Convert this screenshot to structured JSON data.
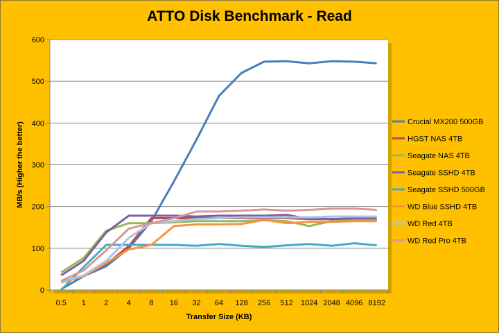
{
  "chart_data": {
    "type": "line",
    "title": "ATTO Disk Benchmark - Read",
    "xlabel": "Transfer Size (KB)",
    "ylabel": "MB/s (Higher the better)",
    "ylim": [
      0,
      600
    ],
    "yticks": [
      0,
      100,
      200,
      300,
      400,
      500,
      600
    ],
    "grid": true,
    "legend": "right",
    "categories": [
      "0.5",
      "1",
      "2",
      "4",
      "8",
      "16",
      "32",
      "64",
      "128",
      "256",
      "512",
      "1024",
      "2048",
      "4096",
      "8192"
    ],
    "series": [
      {
        "name": "Crucial MX200 500GB",
        "color": "#4A7EBB",
        "values": [
          2,
          33,
          57,
          100,
          165,
          260,
          360,
          465,
          520,
          547,
          548,
          543,
          548,
          547,
          543
        ]
      },
      {
        "name": "HGST NAS 4TB",
        "color": "#BE4B48",
        "values": [
          20,
          33,
          62,
          105,
          172,
          172,
          172,
          172,
          172,
          172,
          172,
          170,
          170,
          170,
          170
        ]
      },
      {
        "name": "Seagate NAS 4TB",
        "color": "#98B954",
        "values": [
          42,
          77,
          142,
          160,
          160,
          162,
          165,
          165,
          165,
          167,
          165,
          153,
          165,
          167,
          167
        ]
      },
      {
        "name": "Seagate SSHD 4TB",
        "color": "#7D5FA0",
        "values": [
          35,
          70,
          138,
          178,
          178,
          178,
          176,
          178,
          178,
          178,
          180,
          170,
          170,
          172,
          172
        ]
      },
      {
        "name": "Seagate SSHD 500GB",
        "color": "#46AAC5",
        "values": [
          0,
          55,
          108,
          108,
          108,
          108,
          106,
          110,
          106,
          103,
          107,
          110,
          106,
          112,
          107
        ]
      },
      {
        "name": "WD Blue SSHD 4TB",
        "color": "#F69240",
        "values": [
          18,
          33,
          65,
          97,
          108,
          153,
          157,
          157,
          158,
          168,
          160,
          163,
          163,
          165,
          165
        ]
      },
      {
        "name": "WD Red 4TB",
        "color": "#A9C4E8",
        "values": [
          20,
          35,
          70,
          125,
          160,
          165,
          170,
          172,
          174,
          174,
          174,
          174,
          176,
          176,
          176
        ]
      },
      {
        "name": "WD Red Pro 4TB",
        "color": "#D99795",
        "values": [
          22,
          47,
          95,
          147,
          160,
          172,
          188,
          188,
          190,
          193,
          190,
          192,
          195,
          195,
          192
        ]
      }
    ]
  }
}
